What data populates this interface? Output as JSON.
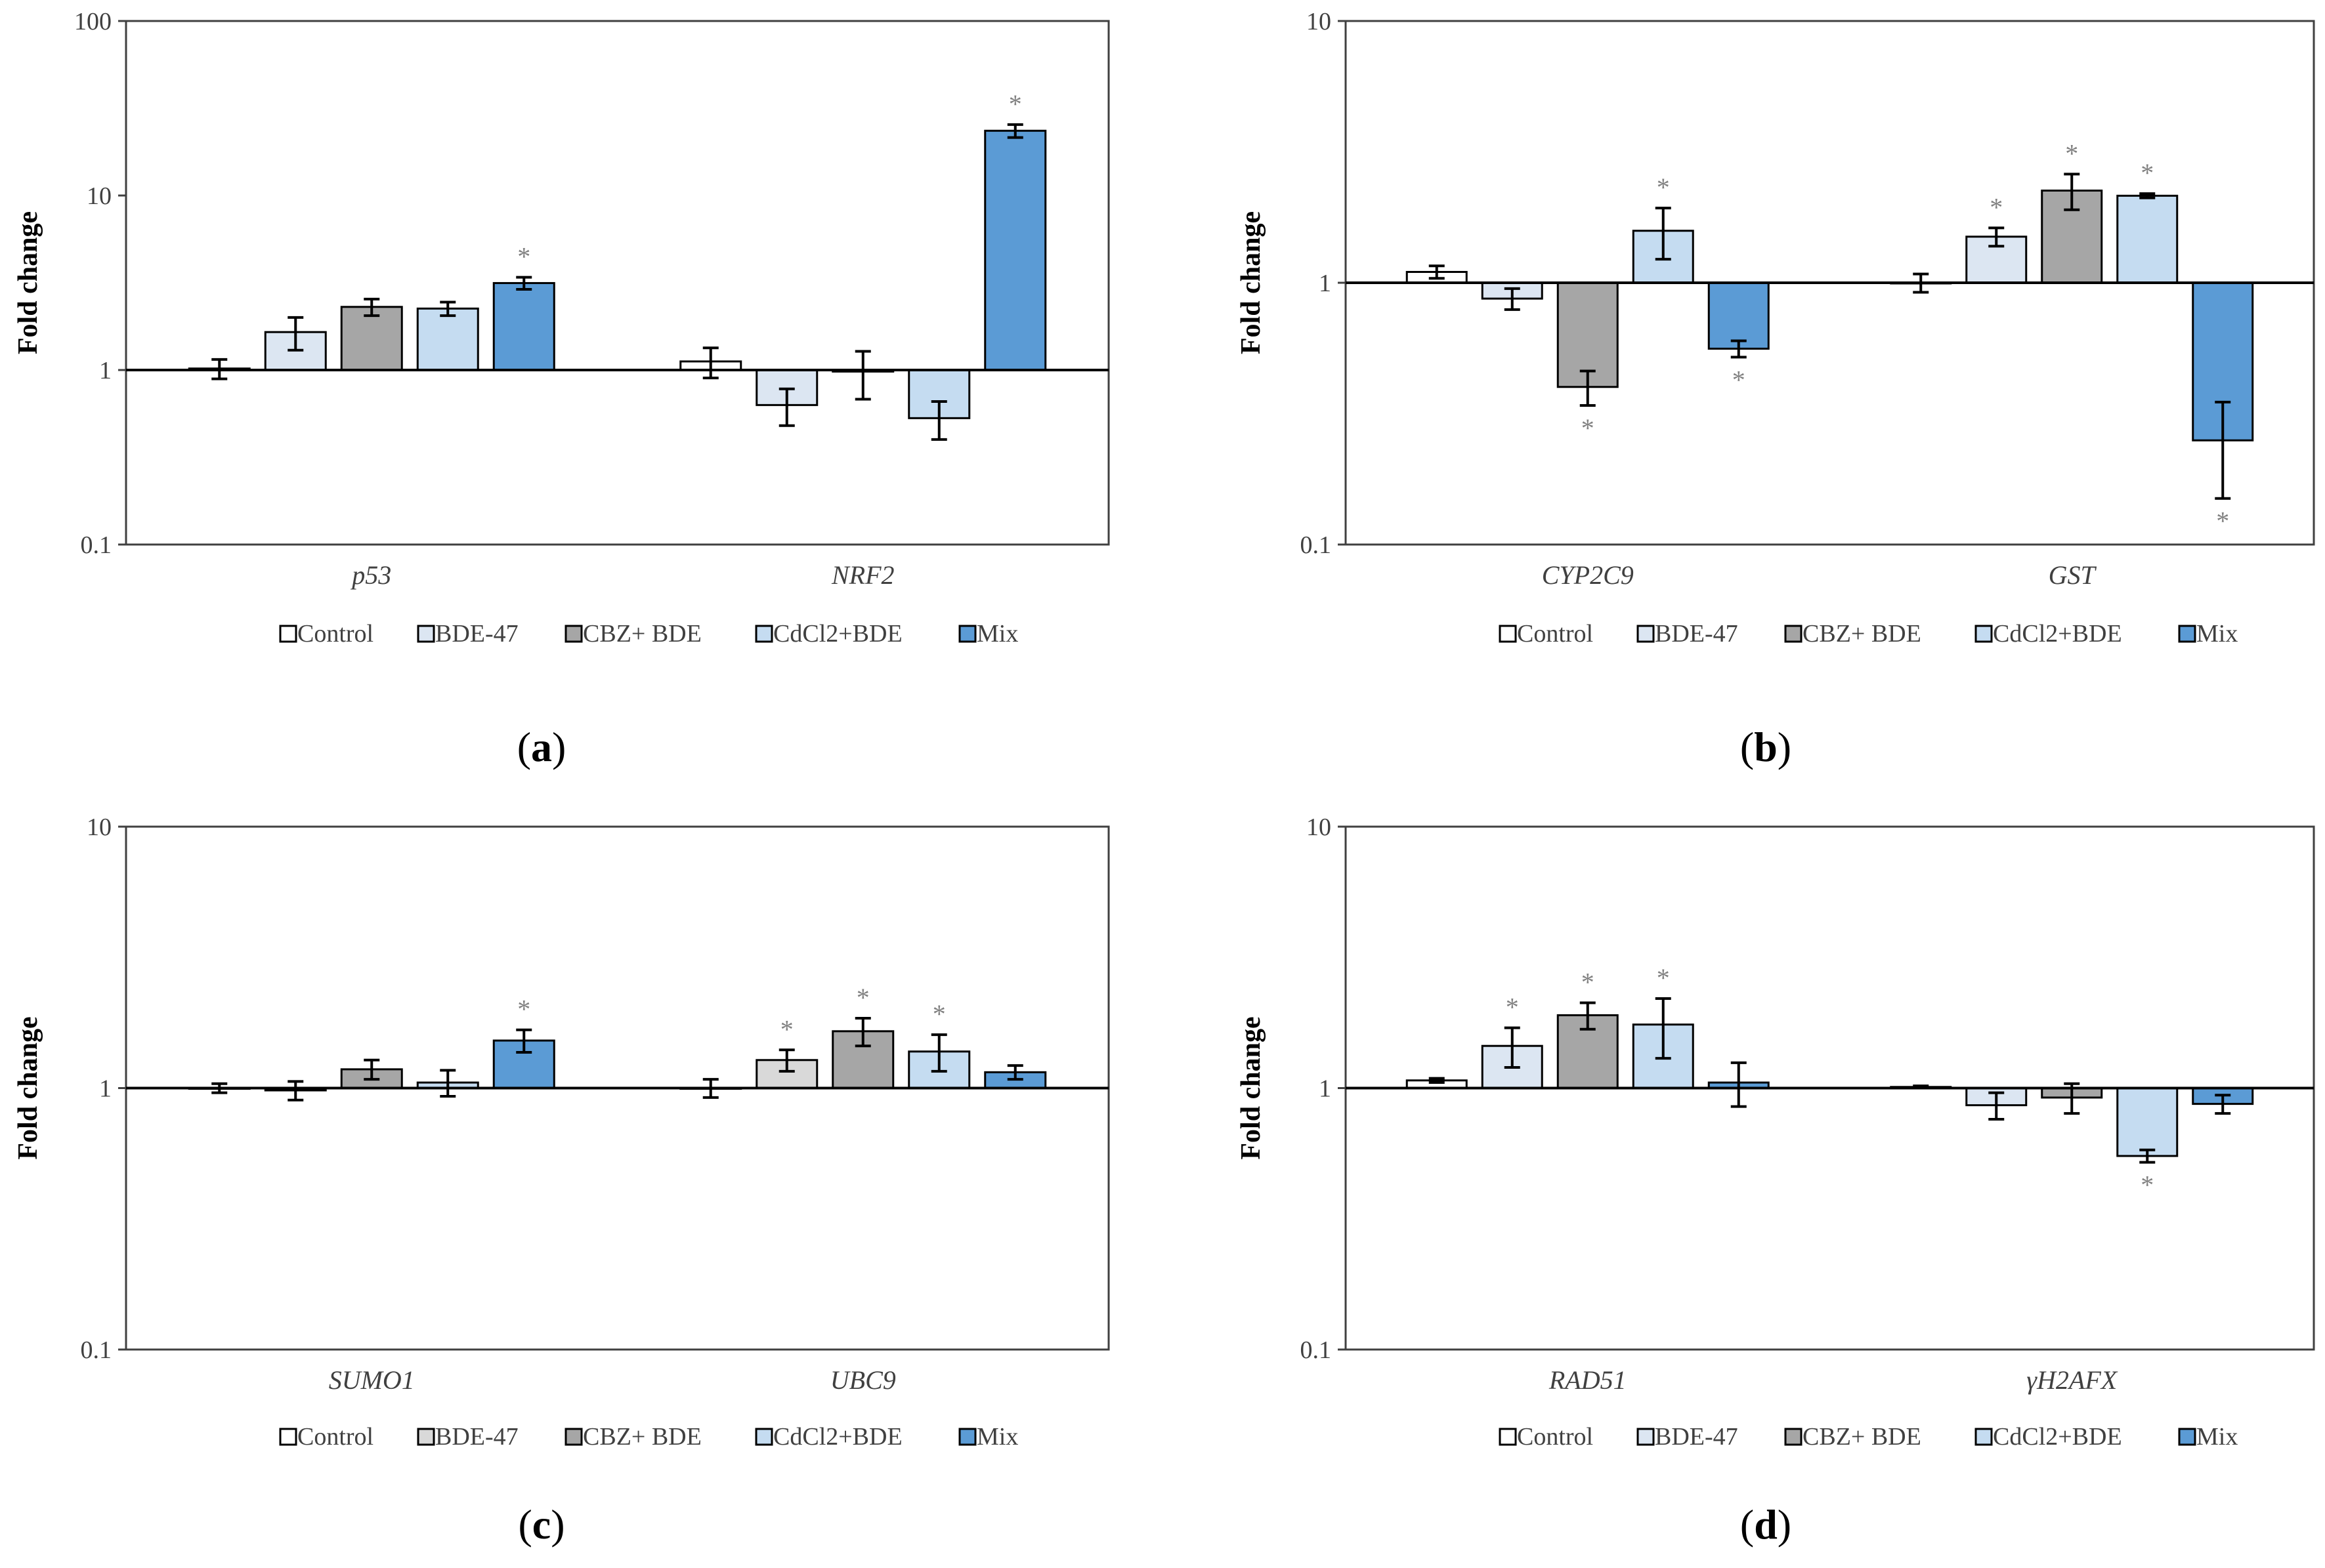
{
  "figure": {
    "y_axis_label": "Fold change",
    "panel_labels": [
      "a",
      "b",
      "c",
      "d"
    ]
  },
  "colors": {
    "Control": "#ffffff",
    "BDE-47": "#dce6f2",
    "CBZ+ BDE": "#a6a6a6",
    "CdCl2+BDE": "#c5dcf1",
    "Mix": "#5b9bd5",
    "BDE-47_c": "#d9d9d9",
    "star": "#808080"
  },
  "chart_data": [
    {
      "panel": "a",
      "type": "bar",
      "scale": "log",
      "ylim": [
        0.1,
        100
      ],
      "yticks": [
        "0.1",
        "1",
        "10",
        "100"
      ],
      "ylabel": "Fold change",
      "categories": [
        "p53",
        "NRF2"
      ],
      "series": [
        {
          "name": "Control",
          "values": [
            1.02,
            1.12
          ],
          "errors": [
            0.13,
            0.22
          ],
          "sig": [
            false,
            false
          ]
        },
        {
          "name": "BDE-47",
          "values": [
            1.65,
            0.63
          ],
          "errors": [
            0.35,
            0.15
          ],
          "sig": [
            false,
            false
          ]
        },
        {
          "name": "CBZ+ BDE",
          "values": [
            2.3,
            0.98
          ],
          "errors": [
            0.25,
            0.3
          ],
          "sig": [
            false,
            false
          ]
        },
        {
          "name": "CdCl2+BDE",
          "values": [
            2.25,
            0.53
          ],
          "errors": [
            0.2,
            0.13
          ],
          "sig": [
            false,
            false
          ]
        },
        {
          "name": "Mix",
          "values": [
            3.15,
            23.5
          ],
          "errors": [
            0.25,
            2.0
          ],
          "sig": [
            true,
            true
          ]
        }
      ],
      "legend": [
        "Control",
        "BDE-47",
        "CBZ+ BDE",
        "CdCl2+BDE",
        "Mix"
      ]
    },
    {
      "panel": "b",
      "type": "bar",
      "scale": "log",
      "ylim": [
        0.1,
        10
      ],
      "yticks": [
        "0.1",
        "1",
        "10"
      ],
      "ylabel": "Fold change",
      "categories": [
        "CYP2C9",
        "GST"
      ],
      "series": [
        {
          "name": "Control",
          "values": [
            1.1,
            1.0
          ],
          "errors": [
            0.06,
            0.08
          ],
          "sig": [
            false,
            false
          ]
        },
        {
          "name": "BDE-47",
          "values": [
            0.87,
            1.5
          ],
          "errors": [
            0.08,
            0.12
          ],
          "sig": [
            false,
            true
          ]
        },
        {
          "name": "CBZ+ BDE",
          "values": [
            0.4,
            2.25
          ],
          "errors": [
            0.06,
            0.35
          ],
          "sig": [
            true,
            true
          ]
        },
        {
          "name": "CdCl2+BDE",
          "values": [
            1.58,
            2.15
          ],
          "errors": [
            0.35,
            0.04
          ],
          "sig": [
            true,
            true
          ]
        },
        {
          "name": "Mix",
          "values": [
            0.56,
            0.25
          ],
          "errors": [
            0.04,
            0.1
          ],
          "sig": [
            true,
            true
          ]
        }
      ],
      "legend": [
        "Control",
        "BDE-47",
        "CBZ+ BDE",
        "CdCl2+BDE",
        "Mix"
      ]
    },
    {
      "panel": "c",
      "type": "bar",
      "scale": "log",
      "ylim": [
        0.1,
        10
      ],
      "yticks": [
        "0.1",
        "1",
        "10"
      ],
      "ylabel": "Fold change",
      "categories": [
        "SUMO1",
        "UBC9"
      ],
      "series": [
        {
          "name": "Control",
          "values": [
            1.0,
            1.0
          ],
          "errors": [
            0.04,
            0.08
          ],
          "sig": [
            false,
            false
          ]
        },
        {
          "name": "BDE-47",
          "values": [
            0.98,
            1.28
          ],
          "errors": [
            0.08,
            0.12
          ],
          "sig": [
            false,
            true
          ]
        },
        {
          "name": "CBZ+ BDE",
          "values": [
            1.18,
            1.65
          ],
          "errors": [
            0.1,
            0.2
          ],
          "sig": [
            false,
            true
          ]
        },
        {
          "name": "CdCl2+BDE",
          "values": [
            1.05,
            1.38
          ],
          "errors": [
            0.12,
            0.22
          ],
          "sig": [
            false,
            true
          ]
        },
        {
          "name": "Mix",
          "values": [
            1.52,
            1.15
          ],
          "errors": [
            0.15,
            0.07
          ],
          "sig": [
            true,
            false
          ]
        }
      ],
      "legend": [
        "Control",
        "BDE-47",
        "CBZ+ BDE",
        "CdCl2+BDE",
        "Mix"
      ]
    },
    {
      "panel": "d",
      "type": "bar",
      "scale": "log",
      "ylim": [
        0.1,
        10
      ],
      "yticks": [
        "0.1",
        "1",
        "10"
      ],
      "ylabel": "Fold change",
      "categories": [
        "RAD51",
        "γH2AFX"
      ],
      "series": [
        {
          "name": "Control",
          "values": [
            1.07,
            1.01
          ],
          "errors": [
            0.02,
            0.01
          ],
          "sig": [
            false,
            false
          ]
        },
        {
          "name": "BDE-47",
          "values": [
            1.45,
            0.86
          ],
          "errors": [
            0.25,
            0.1
          ],
          "sig": [
            true,
            false
          ]
        },
        {
          "name": "CBZ+ BDE",
          "values": [
            1.9,
            0.92
          ],
          "errors": [
            0.22,
            0.12
          ],
          "sig": [
            true,
            false
          ]
        },
        {
          "name": "CdCl2+BDE",
          "values": [
            1.75,
            0.55
          ],
          "errors": [
            0.45,
            0.03
          ],
          "sig": [
            true,
            true
          ]
        },
        {
          "name": "Mix",
          "values": [
            1.05,
            0.87
          ],
          "errors": [
            0.2,
            0.07
          ],
          "sig": [
            false,
            false
          ]
        }
      ],
      "legend": [
        "Control",
        "BDE-47",
        "CBZ+ BDE",
        "CdCl2+BDE",
        "Mix"
      ]
    }
  ]
}
